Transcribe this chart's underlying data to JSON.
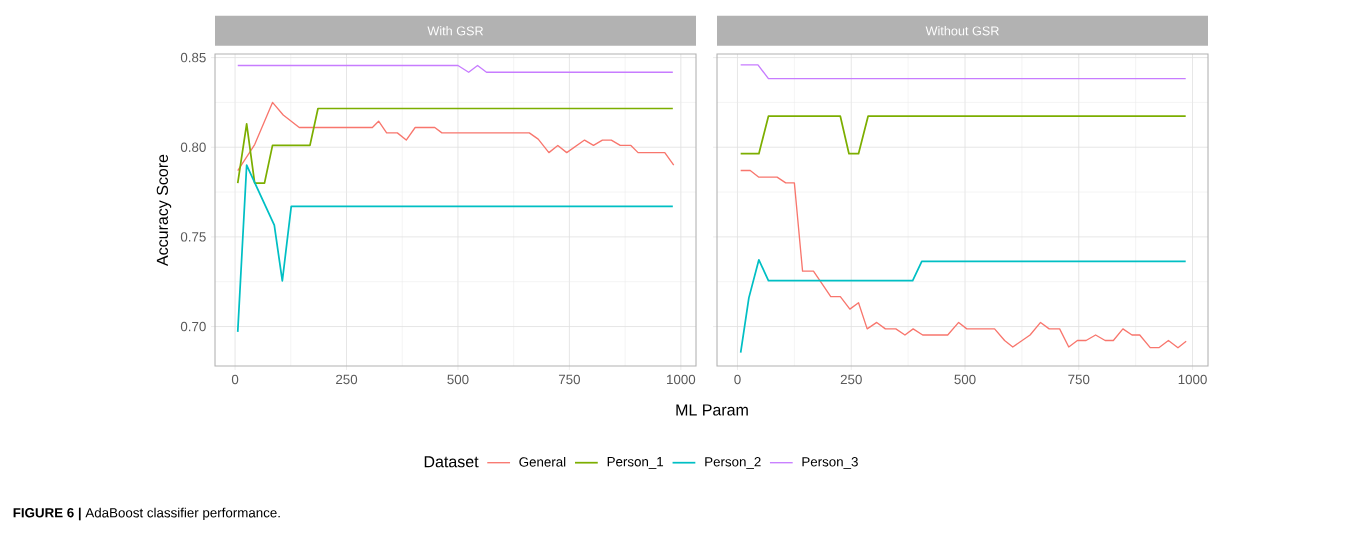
{
  "chart_data": [
    {
      "type": "line",
      "title": "With GSR",
      "xlabel": "ML Param",
      "ylabel": "Accuracy Score",
      "legend_title": "Dataset",
      "legend": "bottom",
      "grid": true,
      "line_style": "solid",
      "xlim": [
        -45,
        1034
      ],
      "ylim": [
        0.678,
        0.852
      ],
      "xticks": [
        0,
        250,
        500,
        750,
        1000
      ],
      "yticks": [
        {
          "value": 0.7,
          "label": "0.70"
        },
        {
          "value": 0.75,
          "label": "0.75"
        },
        {
          "value": 0.8,
          "label": "0.80"
        },
        {
          "value": 0.85,
          "label": "0.85"
        }
      ],
      "annotations": [
        "**FIGURE 6 |** AdaBoost classifier performance."
      ],
      "series": [
        {
          "name": "General",
          "color": "#f8766d",
          "x": [
            6,
            44,
            84,
            108,
            144,
            308,
            322,
            340,
            364,
            384,
            404,
            448,
            464,
            660,
            680,
            704,
            724,
            744,
            784,
            804,
            824,
            844,
            864,
            888,
            904,
            964,
            984
          ],
          "values": [
            0.787,
            0.8015,
            0.825,
            0.818,
            0.811,
            0.811,
            0.8145,
            0.808,
            0.808,
            0.804,
            0.811,
            0.811,
            0.808,
            0.808,
            0.8045,
            0.797,
            0.801,
            0.797,
            0.804,
            0.801,
            0.804,
            0.804,
            0.801,
            0.801,
            0.797,
            0.797,
            0.79
          ]
        },
        {
          "name": "Person_1",
          "color": "#7cae00",
          "x": [
            6,
            26,
            44,
            66,
            84,
            168,
            186,
            982
          ],
          "values": [
            0.78,
            0.813,
            0.78,
            0.78,
            0.801,
            0.801,
            0.8216,
            0.8216
          ]
        },
        {
          "name": "Person_2",
          "color": "#00bfc4",
          "x": [
            6,
            26,
            88,
            106,
            126,
            982
          ],
          "values": [
            0.697,
            0.79,
            0.7565,
            0.7254,
            0.767,
            0.767
          ]
        },
        {
          "name": "Person_3",
          "color": "#c77cff",
          "x": [
            6,
            500,
            524,
            544,
            564,
            982
          ],
          "values": [
            0.8456,
            0.8456,
            0.8418,
            0.8456,
            0.8418,
            0.8418
          ]
        }
      ]
    },
    {
      "type": "line",
      "title": "Without GSR",
      "grid": true,
      "line_style": "solid",
      "tick_labels": "x",
      "xlim": [
        -45,
        1034
      ],
      "ylim": [
        0.678,
        0.852
      ],
      "xticks": [
        0,
        250,
        500,
        750,
        1000
      ],
      "yticks": [
        {
          "value": 0.7,
          "label": null
        },
        {
          "value": 0.75,
          "label": null
        },
        {
          "value": 0.8,
          "label": null
        },
        {
          "value": 0.85,
          "label": null
        }
      ],
      "series": [
        {
          "color": "#f8766d",
          "x": [
            7,
            28,
            47,
            87,
            106,
            125,
            143,
            167,
            205,
            226,
            247,
            266,
            285,
            306,
            325,
            348,
            368,
            386,
            407,
            462,
            486,
            504,
            565,
            587,
            605,
            643,
            666,
            685,
            708,
            728,
            747,
            766,
            787,
            808,
            826,
            847,
            867,
            884,
            907,
            926,
            947,
            968,
            986
          ],
          "values": [
            0.787,
            0.787,
            0.7833,
            0.7833,
            0.7801,
            0.7801,
            0.7309,
            0.7309,
            0.7167,
            0.7167,
            0.7097,
            0.7133,
            0.6987,
            0.7023,
            0.6987,
            0.6987,
            0.6953,
            0.6987,
            0.6953,
            0.6953,
            0.7023,
            0.6987,
            0.6987,
            0.6922,
            0.6886,
            0.6953,
            0.7023,
            0.6987,
            0.6987,
            0.6886,
            0.6922,
            0.6922,
            0.6953,
            0.6922,
            0.6922,
            0.6987,
            0.6953,
            0.6953,
            0.6882,
            0.6882,
            0.6922,
            0.6882,
            0.6918
          ]
        },
        {
          "color": "#7cae00",
          "x": [
            7,
            47,
            68,
            226,
            245,
            266,
            287,
            985
          ],
          "values": [
            0.7964,
            0.7964,
            0.8173,
            0.8173,
            0.7964,
            0.7964,
            0.8173,
            0.8173
          ]
        },
        {
          "color": "#00bfc4",
          "x": [
            7,
            25,
            47,
            68,
            385,
            405,
            985
          ],
          "values": [
            0.6854,
            0.716,
            0.7372,
            0.7256,
            0.7256,
            0.7364,
            0.7364
          ]
        },
        {
          "color": "#c77cff",
          "x": [
            7,
            45,
            68,
            985
          ],
          "values": [
            0.8459,
            0.8459,
            0.8383,
            0.8383
          ]
        }
      ]
    }
  ]
}
